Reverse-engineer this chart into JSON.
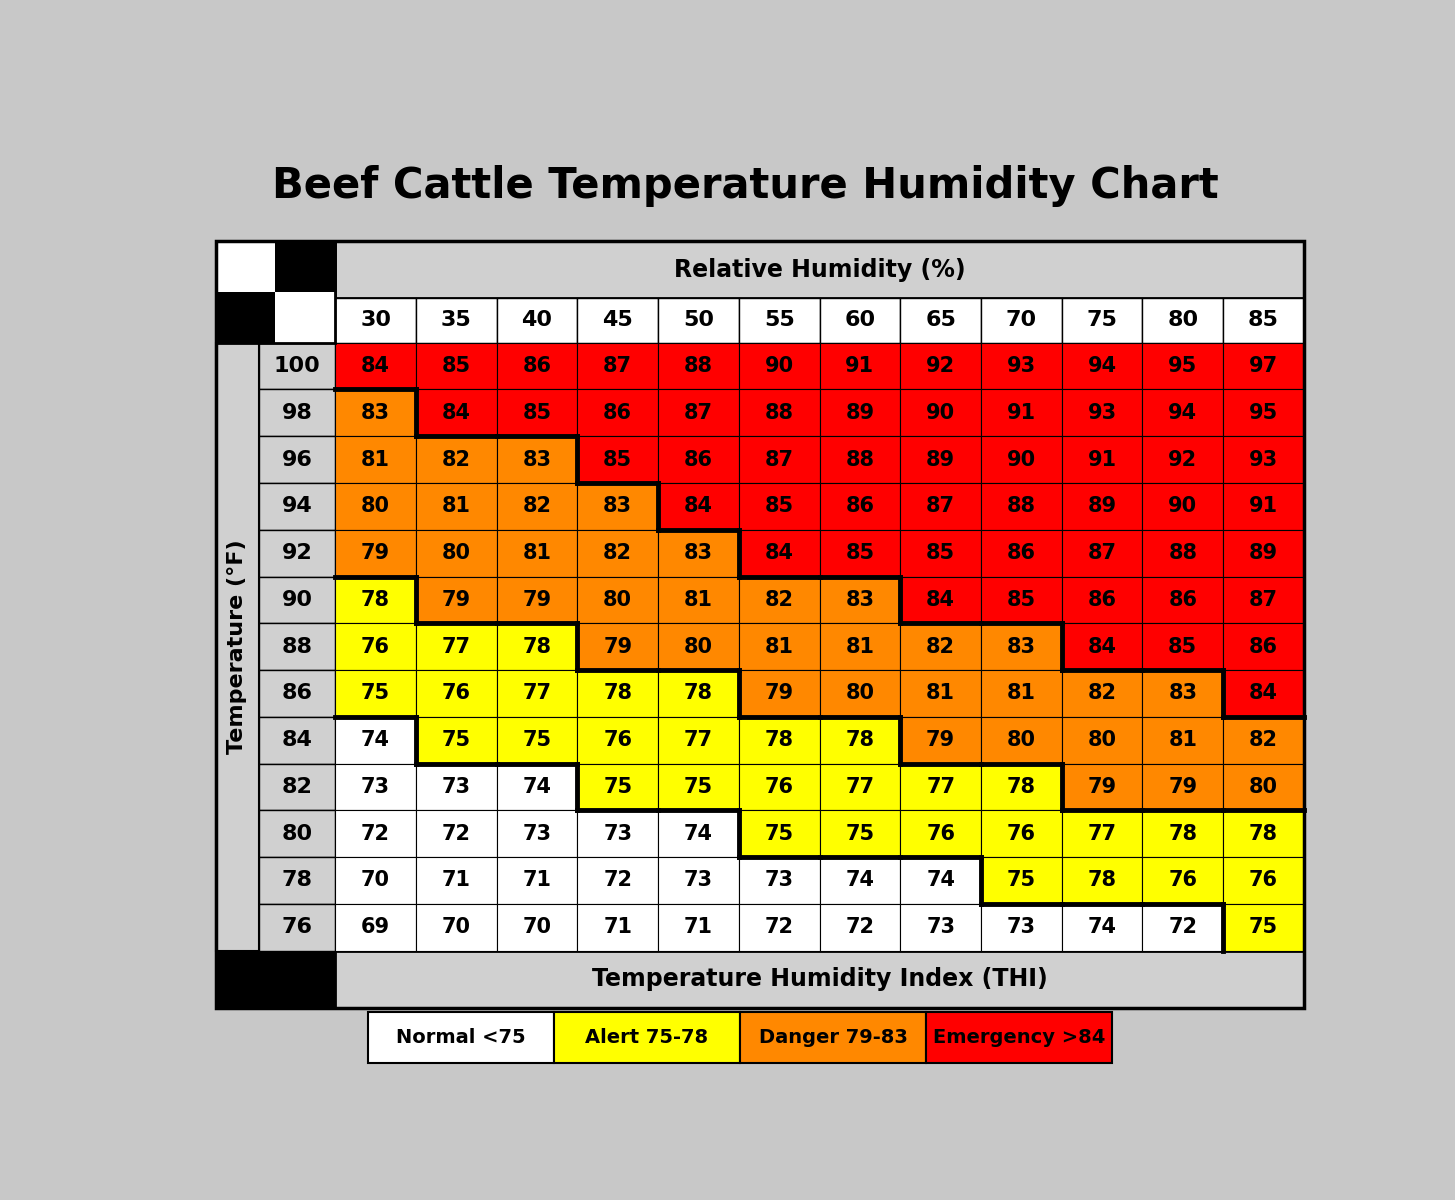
{
  "title": "Beef Cattle Temperature Humidity Chart",
  "col_header": "Relative Humidity (%)",
  "row_header": "Temperature (°F)",
  "bottom_header": "Temperature Humidity Index (THI)",
  "humidity_cols": [
    30,
    35,
    40,
    45,
    50,
    55,
    60,
    65,
    70,
    75,
    80,
    85
  ],
  "temp_rows": [
    100,
    98,
    96,
    94,
    92,
    90,
    88,
    86,
    84,
    82,
    80,
    78,
    76
  ],
  "thi_values": [
    [
      84,
      85,
      86,
      87,
      88,
      90,
      91,
      92,
      93,
      94,
      95,
      97
    ],
    [
      83,
      84,
      85,
      86,
      87,
      88,
      89,
      90,
      91,
      93,
      94,
      95
    ],
    [
      81,
      82,
      83,
      85,
      86,
      87,
      88,
      89,
      90,
      91,
      92,
      93
    ],
    [
      80,
      81,
      82,
      83,
      84,
      85,
      86,
      87,
      88,
      89,
      90,
      91
    ],
    [
      79,
      80,
      81,
      82,
      83,
      84,
      85,
      85,
      86,
      87,
      88,
      89
    ],
    [
      78,
      79,
      79,
      80,
      81,
      82,
      83,
      84,
      85,
      86,
      86,
      87
    ],
    [
      76,
      77,
      78,
      79,
      80,
      81,
      81,
      82,
      83,
      84,
      85,
      86
    ],
    [
      75,
      76,
      77,
      78,
      78,
      79,
      80,
      81,
      81,
      82,
      83,
      84
    ],
    [
      74,
      75,
      75,
      76,
      77,
      78,
      78,
      79,
      80,
      80,
      81,
      82
    ],
    [
      73,
      73,
      74,
      75,
      75,
      76,
      77,
      77,
      78,
      79,
      79,
      80
    ],
    [
      72,
      72,
      73,
      73,
      74,
      75,
      75,
      76,
      76,
      77,
      78,
      78
    ],
    [
      70,
      71,
      71,
      72,
      73,
      73,
      74,
      74,
      75,
      78,
      76,
      76
    ],
    [
      69,
      70,
      70,
      71,
      71,
      72,
      72,
      73,
      73,
      74,
      72,
      75
    ]
  ],
  "color_normal": "#ffffff",
  "color_alert": "#ffff00",
  "color_danger": "#ff8800",
  "color_emergency": "#ff0000",
  "color_header_bg": "#d0d0d0",
  "color_row_label_bg": "#d0d0d0",
  "color_fig_bg": "#c8c8c8",
  "legend_labels": [
    "Normal <75",
    "Alert 75-78",
    "Danger 79-83",
    "Emergency >84"
  ],
  "legend_colors": [
    "#ffffff",
    "#ffff00",
    "#ff8800",
    "#ff0000"
  ],
  "title_fontsize": 30,
  "header_fontsize": 17,
  "col_label_fontsize": 16,
  "data_fontsize": 15,
  "row_label_fontsize": 16,
  "legend_fontsize": 14
}
